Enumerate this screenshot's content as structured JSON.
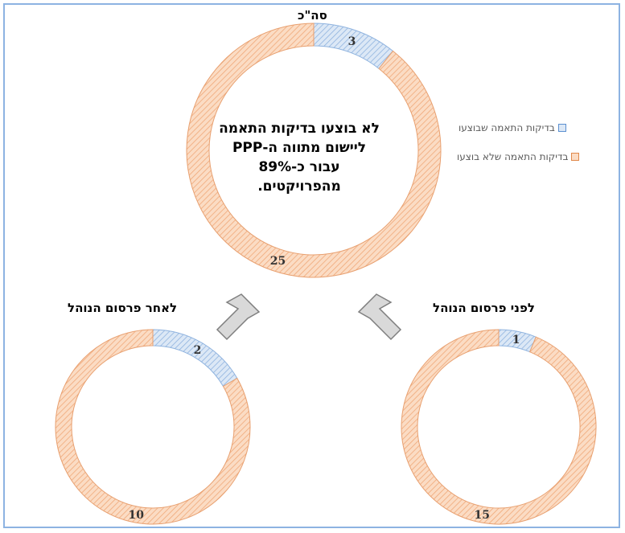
{
  "chart_data": [
    {
      "type": "pie",
      "title": "סה\"כ",
      "categories": [
        "בדיקות התאמה שבוצעו",
        "בדיקות התאמה שלא בוצעו"
      ],
      "values": [
        3,
        25
      ],
      "center_annotation": "לא בוצעו בדיקות התאמה ליישום מתווה ה-PPP עבור כ-89% מהפרויקטים."
    },
    {
      "type": "pie",
      "title": "לאחר פרסום הנוהל",
      "categories": [
        "בדיקות התאמה שבוצעו",
        "בדיקות התאמה שלא בוצעו"
      ],
      "values": [
        2,
        10
      ]
    },
    {
      "type": "pie",
      "title": "לפני פרסום הנוהל",
      "categories": [
        "בדיקות התאמה שבוצעו",
        "בדיקות התאמה שלא בוצעו"
      ],
      "values": [
        1,
        15
      ]
    }
  ],
  "legend": [
    {
      "label": "בדיקות התאמה שבוצעו",
      "color": "#6f9fd8"
    },
    {
      "label": "בדיקות התאמה שלא בוצעו",
      "color": "#f4a460"
    }
  ],
  "colors": {
    "done_fill": "#dce8f6",
    "done_hatch": "#8fb3df",
    "notdone_fill": "#fbdcc4",
    "notdone_hatch": "#f0a878",
    "arrow": "#d9d9d9"
  }
}
